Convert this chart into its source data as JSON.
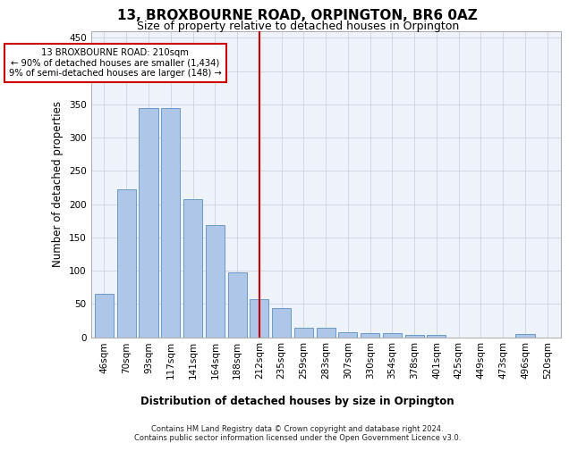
{
  "title1": "13, BROXBOURNE ROAD, ORPINGTON, BR6 0AZ",
  "title2": "Size of property relative to detached houses in Orpington",
  "xlabel": "Distribution of detached houses by size in Orpington",
  "ylabel": "Number of detached properties",
  "bar_labels": [
    "46sqm",
    "70sqm",
    "93sqm",
    "117sqm",
    "141sqm",
    "164sqm",
    "188sqm",
    "212sqm",
    "235sqm",
    "259sqm",
    "283sqm",
    "307sqm",
    "330sqm",
    "354sqm",
    "378sqm",
    "401sqm",
    "425sqm",
    "449sqm",
    "473sqm",
    "496sqm",
    "520sqm"
  ],
  "bar_heights": [
    65,
    222,
    345,
    345,
    208,
    168,
    98,
    57,
    43,
    14,
    14,
    8,
    6,
    6,
    4,
    4,
    0,
    0,
    0,
    5,
    0
  ],
  "bar_color": "#aec6e8",
  "bar_edgecolor": "#5a8fc0",
  "vline_x_idx": 7,
  "vline_color": "#cc0000",
  "annotation_line1": "13 BROXBOURNE ROAD: 210sqm",
  "annotation_line2": "← 90% of detached houses are smaller (1,434)",
  "annotation_line3": "9% of semi-detached houses are larger (148) →",
  "annotation_box_color": "#ffffff",
  "annotation_box_edgecolor": "#cc0000",
  "ylim": [
    0,
    460
  ],
  "yticks": [
    0,
    50,
    100,
    150,
    200,
    250,
    300,
    350,
    400,
    450
  ],
  "footer_text": "Contains HM Land Registry data © Crown copyright and database right 2024.\nContains public sector information licensed under the Open Government Licence v3.0.",
  "background_color": "#eef2fa",
  "grid_color": "#c8ccd8",
  "title1_fontsize": 11,
  "title2_fontsize": 9
}
